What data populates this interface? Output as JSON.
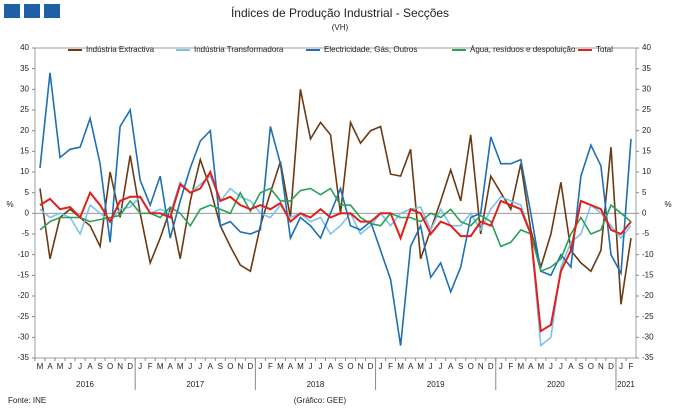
{
  "chart_data": {
    "type": "line",
    "title": "Índices de Produção Industrial - Secções",
    "subtitle": "(VH)",
    "y_label": "%",
    "y2_label": "%",
    "source": "Fonte: INE",
    "credit": "(Gráfico: GEE)",
    "categories": [
      "M",
      "A",
      "M",
      "J",
      "J",
      "A",
      "S",
      "O",
      "N",
      "D",
      "J",
      "F",
      "M",
      "A",
      "M",
      "J",
      "J",
      "A",
      "S",
      "O",
      "N",
      "D",
      "J",
      "F",
      "M",
      "A",
      "M",
      "J",
      "J",
      "A",
      "S",
      "O",
      "N",
      "D",
      "J",
      "F",
      "M",
      "A",
      "M",
      "J",
      "J",
      "A",
      "S",
      "O",
      "N",
      "D",
      "J",
      "F",
      "M",
      "A",
      "M",
      "J",
      "J",
      "A",
      "S",
      "O",
      "N",
      "D",
      "J",
      "F"
    ],
    "years": [
      "2016",
      "2017",
      "2018",
      "2019",
      "2020",
      "2021"
    ],
    "ylim": [
      -35,
      40
    ],
    "yticks": [
      -35,
      -30,
      -25,
      -20,
      -15,
      -10,
      -5,
      0,
      5,
      10,
      15,
      20,
      25,
      30,
      35,
      40
    ],
    "y2lim": [
      -35,
      40
    ],
    "y2ticks": [
      -35,
      -30,
      -25,
      -20,
      -15,
      -10,
      -5,
      0,
      5,
      10,
      15,
      20,
      25,
      30,
      35,
      40
    ],
    "series": [
      {
        "name": "Indústria Extractiva",
        "color": "#6b3a12",
        "values": [
          6,
          -11,
          -1,
          1,
          -1,
          -3,
          -8,
          10,
          -1,
          14,
          0,
          -12,
          -6,
          1,
          -11,
          3,
          13,
          6,
          -3,
          -8,
          -12.5,
          -14,
          -3,
          5,
          12.5,
          -1,
          30,
          18,
          22,
          19,
          0,
          22,
          17,
          20,
          21,
          9.5,
          9,
          15.5,
          -11,
          -4,
          3,
          10.5,
          3,
          19,
          -5,
          9,
          5,
          1,
          12,
          -4,
          -13,
          -5,
          7.5,
          -9,
          -12,
          -14,
          -9,
          16,
          -22,
          -6
        ]
      },
      {
        "name": "Indústria Transformadora",
        "color": "#7cc3ea",
        "values": [
          1,
          -1,
          0,
          -1,
          -5,
          2,
          0,
          -2,
          1,
          1.5,
          4,
          0,
          1,
          0,
          7.5,
          5,
          7,
          9,
          3,
          6,
          4,
          3,
          0,
          -1,
          2,
          -1,
          0,
          -2,
          -1,
          -5,
          -3,
          0,
          -5,
          -3,
          0,
          -3,
          0,
          1,
          1.5,
          -4,
          1,
          -3,
          -3,
          0,
          -4,
          1,
          4,
          3,
          2,
          -5,
          -32,
          -30,
          -13,
          -7,
          -5,
          2,
          0,
          -3,
          -6,
          -3
        ]
      },
      {
        "name": "Electricidade, Gás, Outros",
        "color": "#1f6fb5",
        "values": [
          11,
          34,
          13.5,
          15.5,
          16,
          23,
          12,
          -7,
          21,
          25,
          8,
          2,
          9,
          -6,
          3,
          11,
          17.5,
          20,
          -3,
          -2,
          -4.5,
          -5,
          -4,
          21,
          12,
          -6,
          -1,
          -3,
          -6,
          0,
          6,
          -3,
          -4,
          -2,
          -9,
          -16,
          -32,
          -8,
          -3,
          -15.5,
          -12,
          -19,
          -13,
          -1,
          0,
          18.5,
          12,
          12,
          13,
          0,
          -14,
          -15,
          -10,
          -13,
          9,
          16.5,
          11.5,
          -10,
          -14.5,
          18
        ]
      },
      {
        "name": "Água, resíduos e despoluição",
        "color": "#2aa05a",
        "values": [
          -4,
          -2,
          -1,
          -1,
          -1,
          -2,
          -1.5,
          -1,
          -0.5,
          3,
          0,
          0,
          -1,
          1.5,
          0,
          -3,
          1,
          2,
          1,
          0,
          5,
          0.5,
          5,
          6,
          3,
          3,
          5.5,
          6,
          4.5,
          6,
          2,
          2,
          -1,
          -2.5,
          -3,
          0,
          -1,
          -1,
          -2,
          0,
          -1,
          1,
          -2,
          -3,
          -0.5,
          -2,
          -8,
          -7,
          -4,
          -5,
          -14,
          -13,
          -11,
          -5,
          -1,
          -5,
          -4,
          2,
          0,
          -2
        ]
      },
      {
        "name": "Total",
        "color": "#e0201b",
        "values": [
          2,
          3.5,
          1,
          1.5,
          -1,
          5,
          2,
          -2,
          3,
          4,
          4,
          0,
          0,
          -1,
          7,
          5,
          6,
          10,
          3,
          4,
          2,
          1,
          2,
          1,
          2.5,
          -2,
          0,
          -1,
          1,
          -1,
          0,
          0,
          -2,
          -2,
          0,
          0,
          -6,
          1,
          0,
          -5,
          -2,
          -3,
          -5.5,
          -5.5,
          -2,
          -3,
          3,
          2,
          1,
          -5,
          -28.5,
          -27,
          -14,
          -9,
          3,
          2,
          1,
          -4,
          -5,
          -2
        ]
      }
    ]
  }
}
